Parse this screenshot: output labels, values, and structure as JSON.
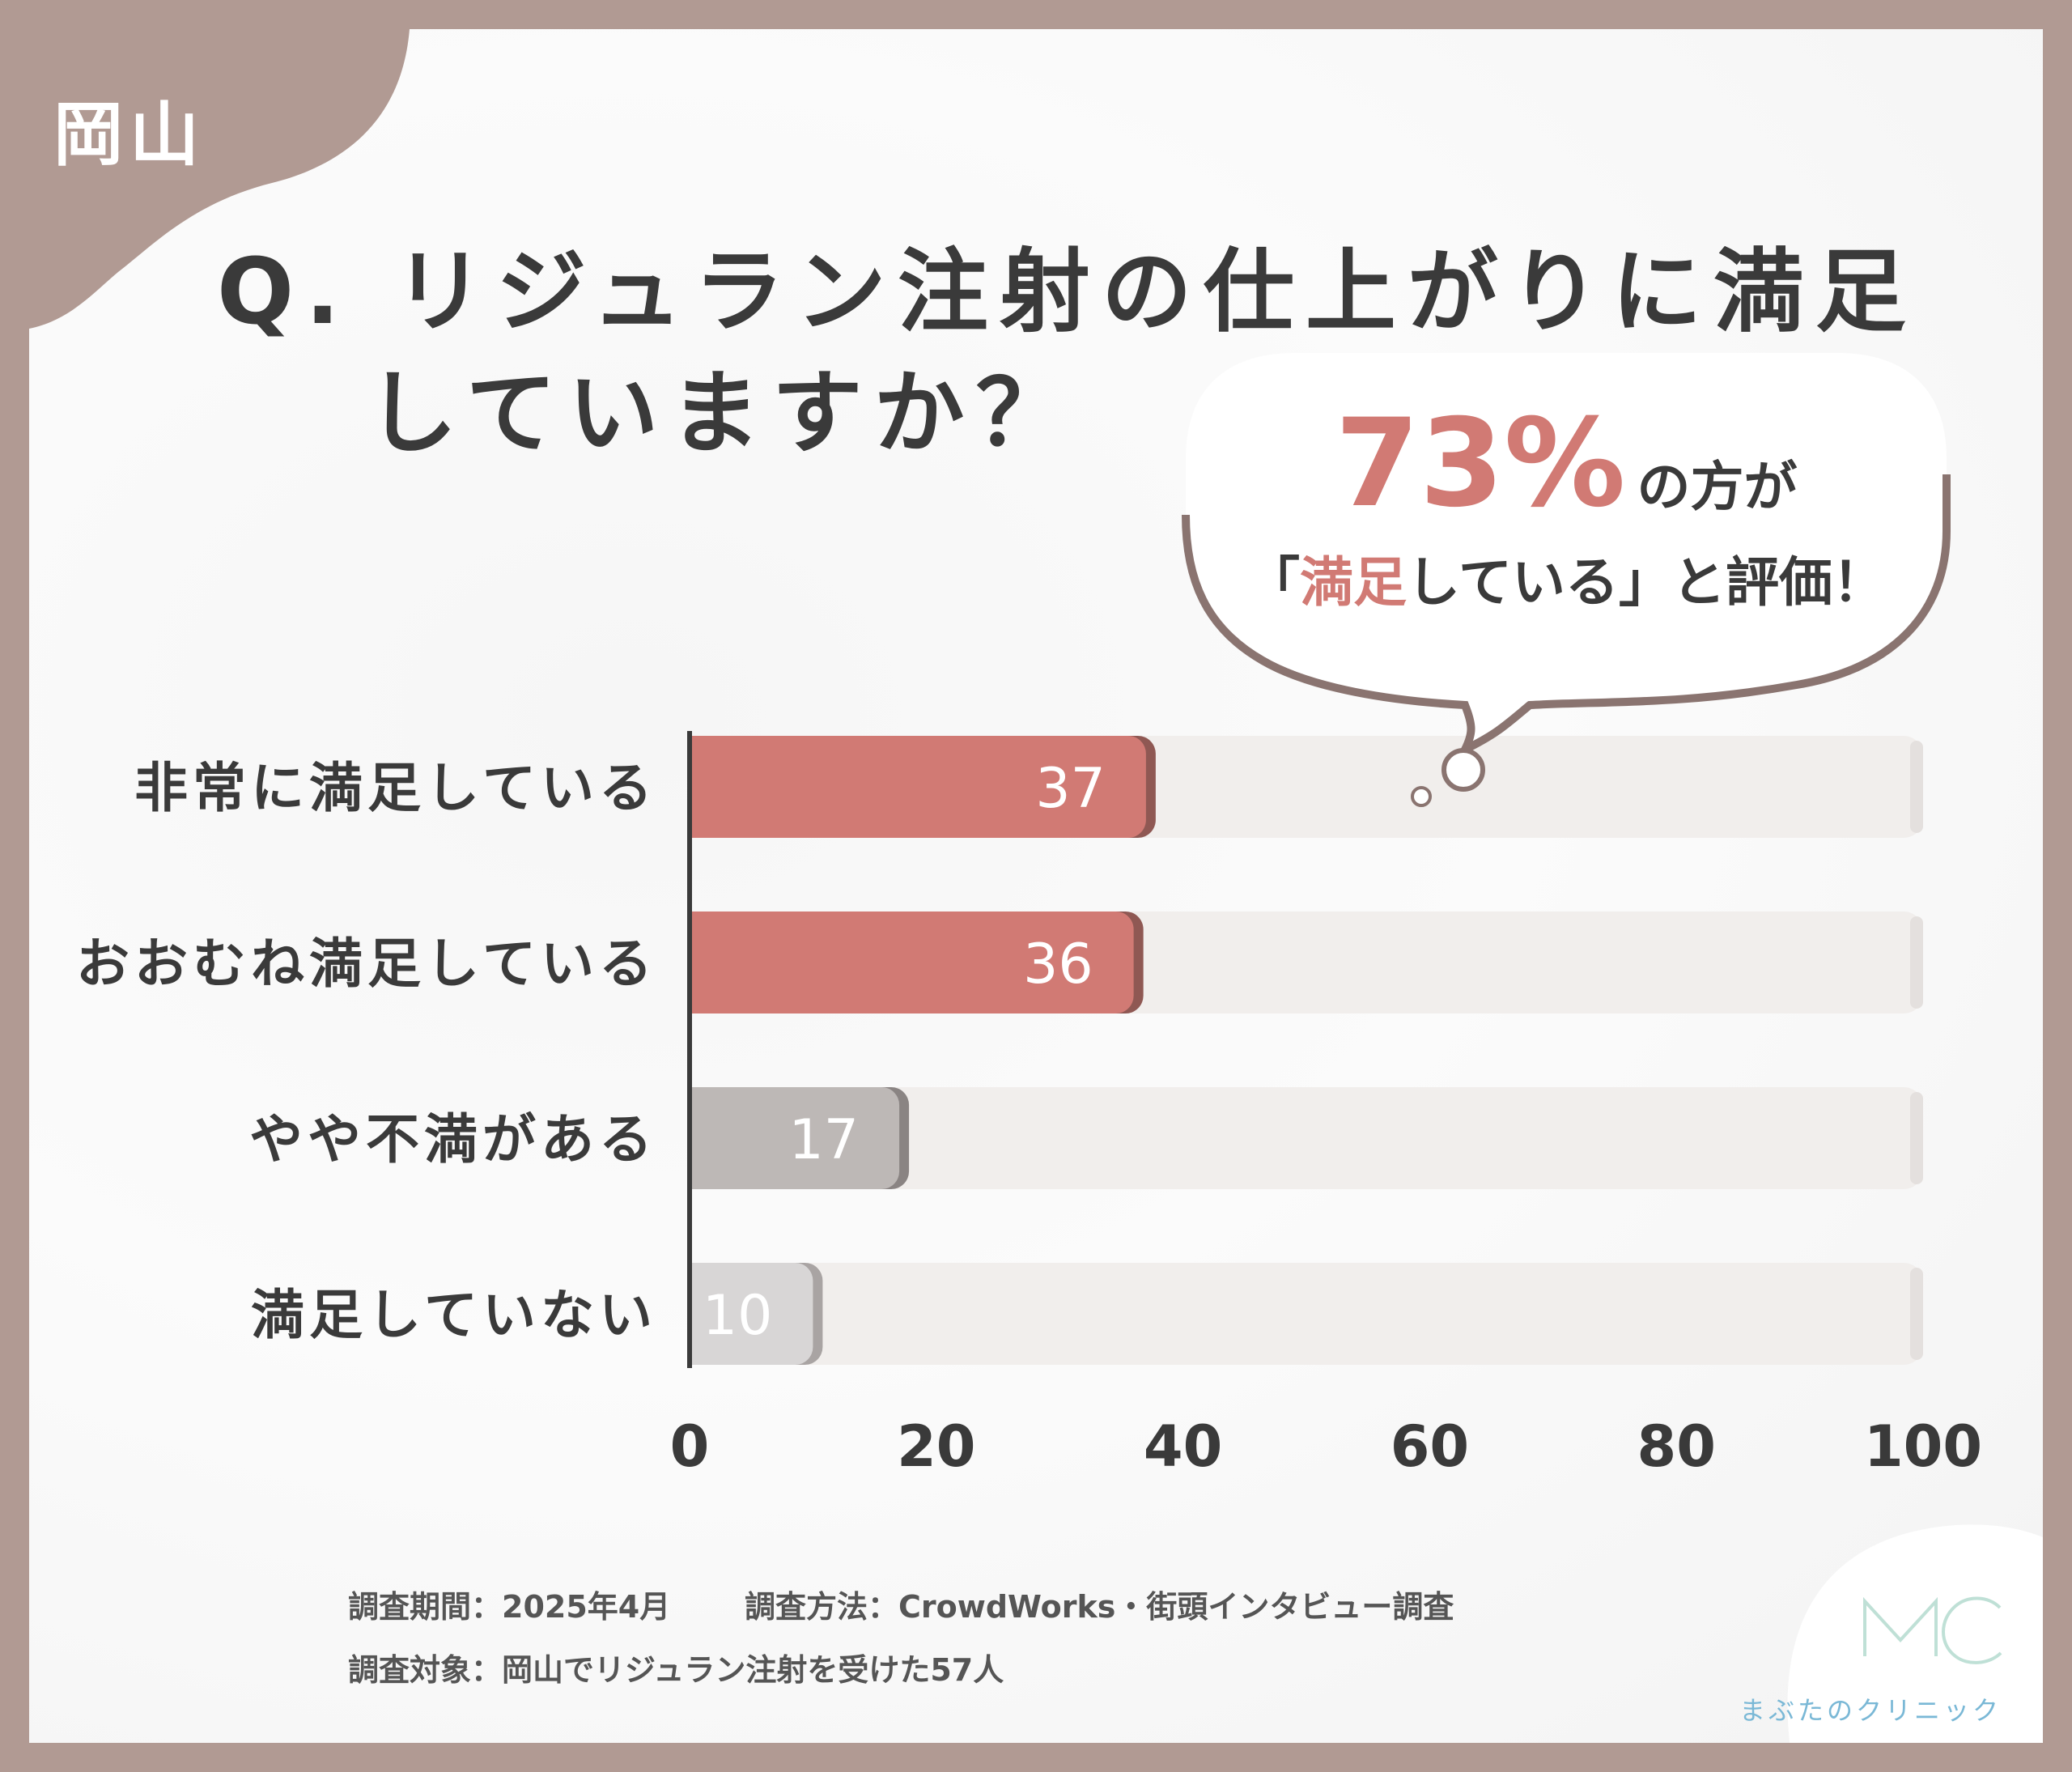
{
  "region_tag": "岡山",
  "question": {
    "line1": "Q. リジュラン注射の仕上がりに満足",
    "line2": "していますか？"
  },
  "bubble": {
    "percent": "73%",
    "suffix": "の方が",
    "open_bracket": "「",
    "highlight": "満足",
    "rest": "している」と評価！"
  },
  "colors": {
    "accent": "#d17a74",
    "gray_bar": "#bdb8b6",
    "light_bar": "#d8d6d6",
    "track": "#f1eeec",
    "frame": "#b19a93",
    "text": "#3a3a3a"
  },
  "chart_data": {
    "type": "bar",
    "orientation": "horizontal",
    "categories": [
      "非常に満足している",
      "おおむね満足している",
      "やや不満がある",
      "満足していない"
    ],
    "values": [
      37,
      36,
      17,
      10
    ],
    "xlim": [
      0,
      100
    ],
    "xticks": [
      "0",
      "20",
      "40",
      "60",
      "80",
      "100"
    ],
    "grid": false
  },
  "footer": {
    "period": "調査期間：2025年4月",
    "method": "調査方法：CrowdWorks・街頭インタビュー調査",
    "subject": "調査対象：岡山でリジュラン注射を受けた57人"
  },
  "logo": {
    "mark": "MC",
    "name": "まぶたのクリニック",
    "icon": "mc-logo-icon"
  }
}
